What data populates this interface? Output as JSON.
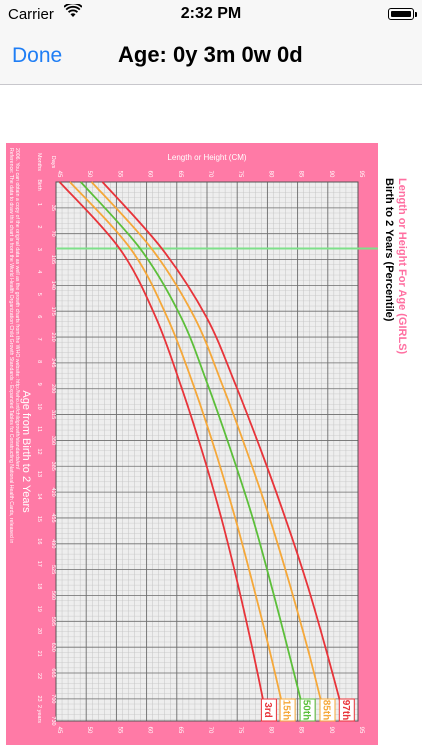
{
  "status_bar": {
    "carrier": "Carrier",
    "time": "2:32 PM"
  },
  "nav": {
    "done_label": "Done",
    "title": "Age: 0y 3m 0w 0d"
  },
  "chart": {
    "title": "Length or Height For Age (GIRLS)",
    "subtitle": "Birth to 2 Years (Percentile)",
    "axis_top_label": "Length or Height (CM)",
    "axis_age_label": "Age from Birth to 2 Years",
    "days_header": "Days",
    "months_header": "Months",
    "birth_label": "Birth",
    "two_years_label": "2 years",
    "reference_line1": "Reference: The data to draw this chart is from the World Health Organization Child Growth Standards - Expanded Tables for Constructing National Health Cards, released in",
    "reference_line2": "2006. You can obtain a copy of the original data as well as the growth charts from the WHO website: http://who.int/childgrowth/standards/en/",
    "colors": {
      "pink": "#ff7aa6",
      "grid": "#9a9a9a",
      "p3": "#e8343a",
      "p15": "#f5a83a",
      "p50": "#5cbf3a",
      "p85": "#f5a83a",
      "p97": "#e8343a",
      "marker": "#7ee08a"
    }
  },
  "chart_data": {
    "type": "line",
    "title": "Length or Height For Age (GIRLS)",
    "subtitle": "Birth to 2 Years (Percentile)",
    "xlabel": "Age from Birth to 2 Years",
    "ylabel": "Length or Height (CM)",
    "x_unit": "days",
    "xlim": [
      0,
      730
    ],
    "ylim": [
      45,
      95
    ],
    "y_ticks": [
      45,
      50,
      55,
      60,
      65,
      70,
      75,
      80,
      85,
      90,
      95
    ],
    "day_ticks": [
      "35",
      "70",
      "105",
      "140",
      "175",
      "210",
      "245",
      "280",
      "315",
      "350",
      "385",
      "420",
      "455",
      "490",
      "525",
      "560",
      "595",
      "630",
      "665",
      "700",
      "730"
    ],
    "month_ticks": [
      "1",
      "2",
      "3",
      "4",
      "5",
      "6",
      "7",
      "8",
      "9",
      "10",
      "11",
      "12",
      "13",
      "14",
      "15",
      "16",
      "17",
      "18",
      "19",
      "20",
      "21",
      "22",
      "23"
    ],
    "current_age_days": 90,
    "x": [
      0,
      91,
      183,
      274,
      365,
      456,
      548,
      639,
      730
    ],
    "series": [
      {
        "name": "3rd",
        "values": [
          45.6,
          55.6,
          61.5,
          65.6,
          69.2,
          72.4,
          75.2,
          77.7,
          80.0
        ]
      },
      {
        "name": "15th",
        "values": [
          47.3,
          57.4,
          63.4,
          67.7,
          71.4,
          74.7,
          77.7,
          80.5,
          83.1
        ]
      },
      {
        "name": "50th",
        "values": [
          49.1,
          59.0,
          65.7,
          70.1,
          74.0,
          77.6,
          80.7,
          83.6,
          86.4
        ]
      },
      {
        "name": "85th",
        "values": [
          50.9,
          60.9,
          67.9,
          72.5,
          76.6,
          80.4,
          83.8,
          86.9,
          89.7
        ]
      },
      {
        "name": "97th",
        "values": [
          52.7,
          62.6,
          69.9,
          74.7,
          79.0,
          83.0,
          86.7,
          89.9,
          92.9
        ]
      }
    ]
  }
}
